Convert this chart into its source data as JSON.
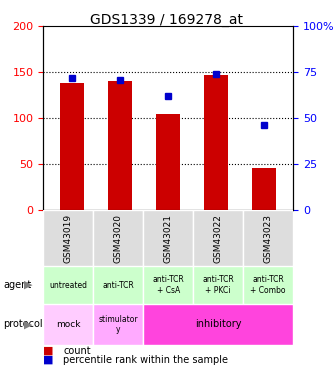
{
  "title": "GDS1339 / 169278_at",
  "samples": [
    "GSM43019",
    "GSM43020",
    "GSM43021",
    "GSM43022",
    "GSM43023"
  ],
  "bar_values": [
    138,
    140,
    105,
    147,
    46
  ],
  "percentile_values": [
    72,
    71,
    62,
    74,
    46
  ],
  "bar_color": "#cc0000",
  "dot_color": "#0000cc",
  "left_ylim": [
    0,
    200
  ],
  "right_ylim": [
    0,
    100
  ],
  "left_yticks": [
    0,
    50,
    100,
    150,
    200
  ],
  "right_yticks": [
    0,
    25,
    50,
    75,
    100
  ],
  "right_yticklabels": [
    "0",
    "25",
    "50",
    "75",
    "100%"
  ],
  "agent_labels": [
    "untreated",
    "anti-TCR",
    "anti-TCR\n+ CsA",
    "anti-TCR\n+ PKCi",
    "anti-TCR\n+ Combo"
  ],
  "agent_bg": "#ccffcc",
  "sample_bg": "#dddddd",
  "legend_count_color": "#cc0000",
  "legend_dot_color": "#0000cc"
}
